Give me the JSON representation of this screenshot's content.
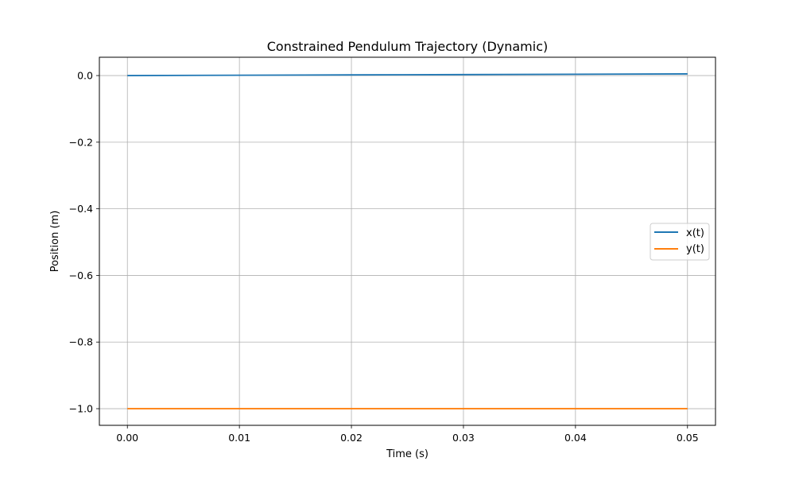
{
  "chart_data": {
    "type": "line",
    "title": "Constrained Pendulum Trajectory (Dynamic)",
    "xlabel": "Time (s)",
    "ylabel": "Position (m)",
    "xlim": [
      -0.0025,
      0.0525
    ],
    "ylim": [
      -1.05,
      0.055
    ],
    "xticks": [
      0.0,
      0.01,
      0.02,
      0.03,
      0.04,
      0.05
    ],
    "xtick_labels": [
      "0.00",
      "0.01",
      "0.02",
      "0.03",
      "0.04",
      "0.05"
    ],
    "yticks": [
      0.0,
      -0.2,
      -0.4,
      -0.6,
      -0.8,
      -1.0
    ],
    "ytick_labels": [
      "0.0",
      "−0.2",
      "−0.4",
      "−0.6",
      "−0.8",
      "−1.0"
    ],
    "grid": true,
    "legend_position": "center-right",
    "series": [
      {
        "name": "x(t)",
        "color": "#1f77b4",
        "x": [
          0.0,
          0.01,
          0.02,
          0.03,
          0.04,
          0.05
        ],
        "values": [
          0.0,
          0.001,
          0.002,
          0.003,
          0.004,
          0.005
        ]
      },
      {
        "name": "y(t)",
        "color": "#ff7f0e",
        "x": [
          0.0,
          0.01,
          0.02,
          0.03,
          0.04,
          0.05
        ],
        "values": [
          -1.0,
          -1.0,
          -1.0,
          -1.0,
          -1.0,
          -1.0
        ]
      }
    ]
  }
}
